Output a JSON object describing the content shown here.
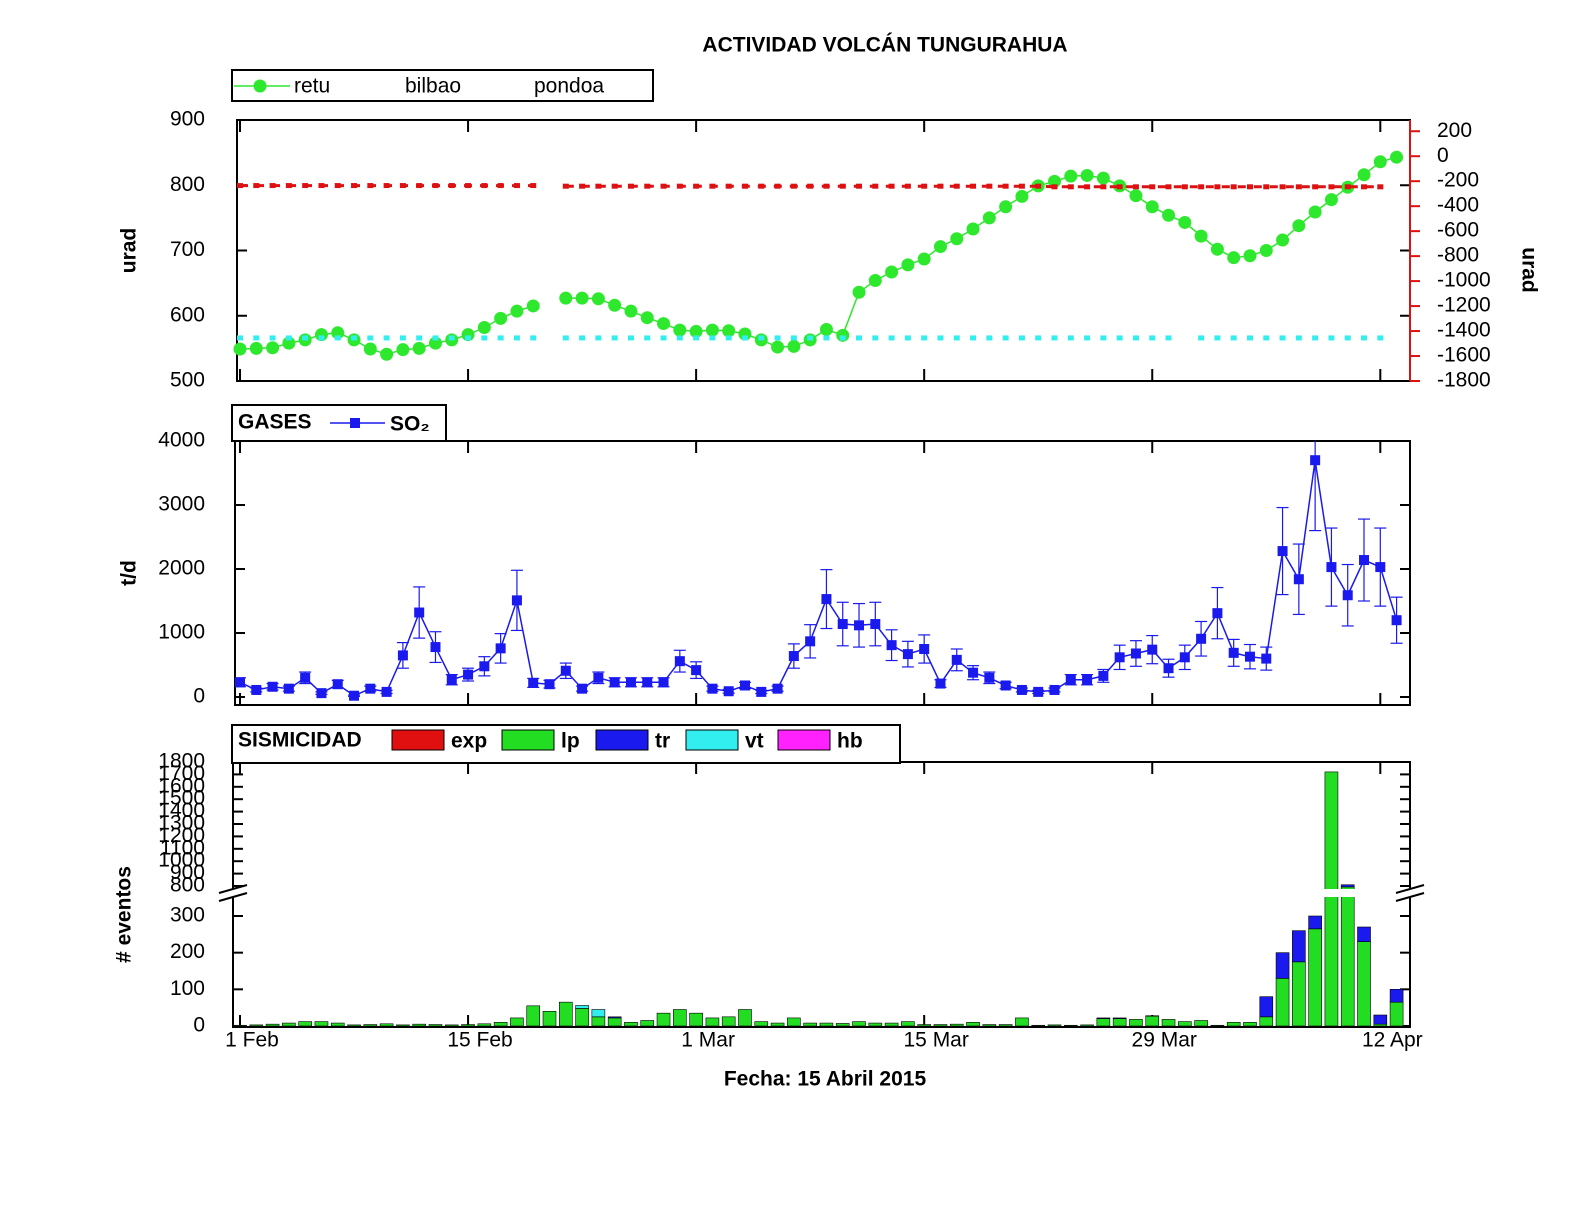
{
  "chart_data": [
    {
      "type": "line",
      "title": "ACTIVIDAD VOLCÁN TUNGURAHUA",
      "y_label": "urad",
      "y2_label": "urad",
      "ylim": [
        500,
        900
      ],
      "yticks": [
        500,
        600,
        700,
        800,
        900
      ],
      "y2lim": [
        -1800,
        290
      ],
      "y2ticks": [
        200,
        0,
        -200,
        -400,
        -600,
        -800,
        -1000,
        -1200,
        -1400,
        -1600,
        -1800
      ],
      "series": [
        {
          "name": "retu",
          "color": "#2ee82e",
          "marker": "circle",
          "line": "solid",
          "values": [
            549,
            550,
            551,
            558,
            563,
            571,
            574,
            563,
            549,
            541,
            548,
            550,
            558,
            563,
            571,
            582,
            596,
            607,
            615,
            null,
            627,
            627,
            626,
            616,
            607,
            597,
            588,
            578,
            576,
            578,
            577,
            572,
            563,
            552,
            553,
            563,
            579,
            570,
            636,
            654,
            667,
            678,
            687,
            706,
            718,
            733,
            750,
            767,
            783,
            799,
            806,
            814,
            815,
            811,
            799,
            784,
            767,
            754,
            743,
            722,
            702,
            689,
            692,
            700,
            716,
            738,
            759,
            778,
            797,
            816,
            836,
            843
          ]
        },
        {
          "name": "bilbao",
          "color": "#dd1111",
          "marker": "square",
          "line": "dashed",
          "axis": "y2",
          "values": [
            -235,
            -235,
            -235,
            -235,
            -235,
            -235,
            -235,
            -235,
            -235,
            -235,
            -235,
            -235,
            -235,
            -235,
            -235,
            -235,
            -235,
            -235,
            -235,
            null,
            -240,
            -240,
            -240,
            -240,
            -240,
            -240,
            -240,
            -240,
            -240,
            -240,
            -240,
            -240,
            -240,
            -240,
            -240,
            -240,
            -240,
            -240,
            -240,
            -240,
            -240,
            -240,
            -240,
            -240,
            -240,
            -240,
            -240,
            -240,
            -240,
            -240,
            -245,
            -245,
            -245,
            -245,
            -245,
            -245,
            -245,
            -245,
            -245,
            -245,
            -245,
            -245,
            -245,
            -245,
            -245,
            -245,
            -245,
            -245,
            -245,
            -245,
            -245,
            null
          ]
        },
        {
          "name": "pondoa",
          "color": "#33eeee",
          "marker": "square",
          "line": "none",
          "values": [
            566,
            566,
            566,
            566,
            566,
            566,
            566,
            566,
            566,
            566,
            566,
            566,
            566,
            566,
            566,
            566,
            566,
            566,
            566,
            null,
            566,
            566,
            566,
            566,
            566,
            566,
            566,
            566,
            566,
            566,
            566,
            566,
            566,
            566,
            566,
            566,
            566,
            566,
            566,
            566,
            566,
            566,
            566,
            566,
            566,
            566,
            566,
            566,
            566,
            566,
            566,
            566,
            566,
            566,
            566,
            566,
            566,
            566,
            null,
            566,
            566,
            566,
            566,
            566,
            566,
            566,
            566,
            566,
            566,
            566,
            566,
            null
          ]
        }
      ]
    },
    {
      "type": "line",
      "legend_title": "GASES",
      "y_label": "t/d",
      "ylim": [
        -125,
        4000
      ],
      "yticks": [
        0,
        1000,
        2000,
        3000,
        4000
      ],
      "series": [
        {
          "name": "SO₂",
          "color": "#1a1aee",
          "marker": "square",
          "line": "solid",
          "values": [
            230,
            110,
            160,
            130,
            300,
            60,
            200,
            20,
            130,
            80,
            650,
            1320,
            780,
            270,
            350,
            480,
            760,
            1510,
            220,
            200,
            410,
            130,
            300,
            230,
            230,
            230,
            230,
            560,
            420,
            130,
            90,
            180,
            80,
            130,
            640,
            870,
            1530,
            1140,
            1120,
            1140,
            810,
            670,
            750,
            210,
            580,
            380,
            300,
            180,
            110,
            80,
            110,
            270,
            270,
            330,
            620,
            680,
            740,
            450,
            620,
            910,
            1310,
            690,
            630,
            600,
            2280,
            1840,
            3700,
            2030,
            1590,
            2140,
            2030,
            1200
          ],
          "errors": [
            70,
            30,
            50,
            40,
            90,
            20,
            60,
            10,
            40,
            25,
            200,
            400,
            240,
            80,
            100,
            150,
            230,
            470,
            70,
            60,
            120,
            40,
            90,
            70,
            70,
            70,
            70,
            170,
            130,
            40,
            30,
            50,
            25,
            40,
            190,
            260,
            460,
            340,
            340,
            340,
            240,
            200,
            220,
            60,
            170,
            110,
            90,
            50,
            30,
            25,
            30,
            80,
            80,
            100,
            190,
            200,
            220,
            140,
            190,
            270,
            400,
            210,
            190,
            180,
            680,
            550,
            1100,
            610,
            480,
            640,
            610,
            360
          ]
        }
      ]
    },
    {
      "type": "bar",
      "stacked": true,
      "legend_title": "SISMICIDAD",
      "y_label": "# eventos",
      "x_label": "Fecha: 15 Abril 2015",
      "ylim": [
        0,
        1800
      ],
      "yticks": [
        0,
        100,
        200,
        300,
        800,
        900,
        1000,
        1100,
        1200,
        1300,
        1400,
        1500,
        1600,
        1700,
        1800
      ],
      "categories": [
        "1 Feb",
        null,
        null,
        null,
        null,
        null,
        null,
        null,
        null,
        null,
        null,
        null,
        null,
        null,
        "15 Feb",
        null,
        null,
        null,
        null,
        null,
        null,
        null,
        null,
        null,
        null,
        null,
        null,
        null,
        "1 Mar",
        null,
        null,
        null,
        null,
        null,
        null,
        null,
        null,
        null,
        null,
        null,
        null,
        null,
        "15 Mar",
        null,
        null,
        null,
        null,
        null,
        null,
        null,
        null,
        null,
        null,
        null,
        null,
        null,
        "29 Mar",
        null,
        null,
        null,
        null,
        null,
        null,
        null,
        null,
        null,
        null,
        null,
        null,
        null,
        "12 Apr",
        null
      ],
      "series": [
        {
          "name": "exp",
          "color": "#e01010",
          "values": [
            0,
            0,
            0,
            0,
            0,
            0,
            0,
            0,
            0,
            0,
            0,
            0,
            0,
            0,
            0,
            0,
            0,
            0,
            0,
            0,
            0,
            0,
            0,
            0,
            0,
            0,
            0,
            0,
            0,
            0,
            0,
            0,
            0,
            0,
            0,
            0,
            0,
            0,
            0,
            0,
            0,
            0,
            0,
            0,
            0,
            0,
            0,
            0,
            0,
            0,
            0,
            0,
            0,
            0,
            0,
            0,
            0,
            0,
            0,
            0,
            0,
            0,
            0,
            0,
            0,
            0,
            0,
            0,
            0,
            0,
            0,
            0
          ]
        },
        {
          "name": "lp",
          "color": "#22dd22",
          "values": [
            2,
            3,
            5,
            8,
            12,
            12,
            8,
            3,
            4,
            6,
            3,
            5,
            4,
            3,
            4,
            6,
            10,
            22,
            55,
            40,
            65,
            48,
            25,
            22,
            10,
            15,
            35,
            45,
            35,
            22,
            25,
            45,
            12,
            8,
            22,
            8,
            8,
            7,
            12,
            8,
            8,
            12,
            4,
            4,
            5,
            10,
            4,
            4,
            22,
            2,
            3,
            2,
            3,
            20,
            20,
            18,
            27,
            18,
            12,
            15,
            2,
            10,
            10,
            25,
            130,
            175,
            265,
            1720,
            785,
            230,
            5,
            65
          ]
        },
        {
          "name": "tr",
          "color": "#1a1aee",
          "values": [
            0,
            0,
            0,
            0,
            0,
            0,
            0,
            0,
            0,
            0,
            0,
            0,
            0,
            0,
            0,
            0,
            0,
            0,
            0,
            0,
            0,
            0,
            0,
            3,
            0,
            0,
            0,
            0,
            0,
            0,
            0,
            0,
            0,
            0,
            0,
            0,
            0,
            0,
            0,
            0,
            0,
            0,
            0,
            0,
            0,
            0,
            0,
            0,
            0,
            0,
            0,
            0,
            0,
            2,
            2,
            0,
            1,
            0,
            0,
            0,
            0,
            0,
            0,
            55,
            70,
            85,
            35,
            0,
            25,
            40,
            25,
            35
          ]
        },
        {
          "name": "vt",
          "color": "#33eeee",
          "values": [
            0,
            0,
            0,
            0,
            0,
            0,
            0,
            0,
            0,
            0,
            0,
            0,
            0,
            0,
            0,
            0,
            0,
            0,
            0,
            0,
            0,
            8,
            20,
            0,
            0,
            0,
            0,
            0,
            0,
            0,
            0,
            0,
            0,
            0,
            0,
            0,
            0,
            0,
            0,
            0,
            0,
            0,
            0,
            0,
            0,
            0,
            0,
            0,
            0,
            0,
            0,
            0,
            0,
            0,
            0,
            0,
            0,
            0,
            0,
            0,
            0,
            0,
            0,
            0,
            0,
            0,
            0,
            0,
            0,
            0,
            0,
            0
          ]
        },
        {
          "name": "hb",
          "color": "#ff22ff",
          "values": [
            0,
            0,
            0,
            0,
            0,
            0,
            0,
            0,
            0,
            0,
            0,
            0,
            0,
            0,
            0,
            0,
            0,
            0,
            0,
            0,
            0,
            0,
            0,
            0,
            0,
            0,
            0,
            0,
            0,
            0,
            0,
            0,
            0,
            0,
            0,
            0,
            0,
            0,
            0,
            0,
            0,
            0,
            0,
            0,
            0,
            0,
            0,
            0,
            0,
            0,
            0,
            0,
            0,
            0,
            0,
            0,
            0,
            0,
            0,
            0,
            0,
            0,
            0,
            0,
            0,
            0,
            0,
            0,
            0,
            0,
            0,
            0
          ]
        }
      ]
    }
  ]
}
